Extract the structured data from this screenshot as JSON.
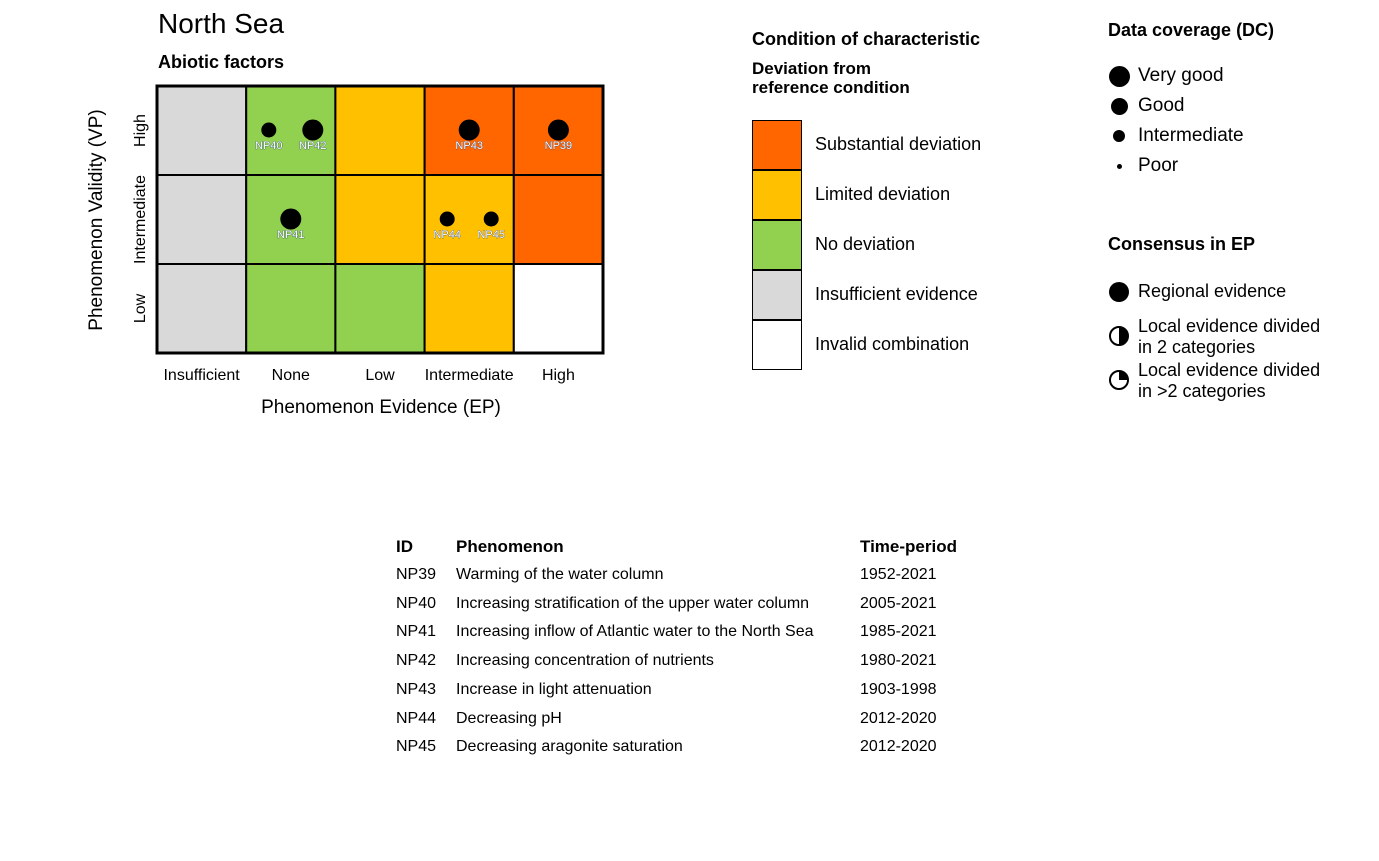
{
  "title": "North Sea",
  "subtitle": "Abiotic factors",
  "chart_data": {
    "type": "heatmap",
    "xlabel": "Phenomenon Evidence (EP)",
    "ylabel": "Phenomenon Validity (VP)",
    "x_categories": [
      "Insufficient",
      "None",
      "Low",
      "Intermediate",
      "High"
    ],
    "y_categories": [
      "High",
      "Intermediate",
      "Low"
    ],
    "cells": [
      [
        "insufficient",
        "none",
        "limited",
        "substantial",
        "substantial"
      ],
      [
        "insufficient",
        "none",
        "limited",
        "limited",
        "substantial"
      ],
      [
        "insufficient",
        "none",
        "none",
        "limited",
        "invalid"
      ]
    ],
    "points": [
      {
        "id": "NP40",
        "ep": "None",
        "vp": "High",
        "coverage": "Intermediate"
      },
      {
        "id": "NP42",
        "ep": "None",
        "vp": "High",
        "coverage": "Very good"
      },
      {
        "id": "NP43",
        "ep": "Intermediate",
        "vp": "High",
        "coverage": "Very good"
      },
      {
        "id": "NP39",
        "ep": "High",
        "vp": "High",
        "coverage": "Very good"
      },
      {
        "id": "NP41",
        "ep": "None",
        "vp": "Intermediate",
        "coverage": "Very good"
      },
      {
        "id": "NP44",
        "ep": "Intermediate",
        "vp": "Intermediate",
        "coverage": "Intermediate"
      },
      {
        "id": "NP45",
        "ep": "Intermediate",
        "vp": "Intermediate",
        "coverage": "Intermediate"
      }
    ]
  },
  "colors": {
    "substantial": "#FF6600",
    "limited": "#FFC000",
    "none": "#92D050",
    "insufficient": "#D9D9D9",
    "invalid": "#FFFFFF"
  },
  "legend": {
    "title": "Condition of characteristic",
    "subtitle_1": "Deviation from",
    "subtitle_2": "reference condition",
    "items": [
      {
        "key": "substantial",
        "label": "Substantial deviation"
      },
      {
        "key": "limited",
        "label": "Limited deviation"
      },
      {
        "key": "none",
        "label": "No deviation"
      },
      {
        "key": "insufficient",
        "label": "Insufficient evidence"
      },
      {
        "key": "invalid",
        "label": "Invalid combination"
      }
    ]
  },
  "coverage": {
    "title": "Data coverage (DC)",
    "items": [
      "Very good",
      "Good",
      "Intermediate",
      "Poor"
    ]
  },
  "consensus": {
    "title": "Consensus in EP",
    "items": [
      {
        "l1": "Regional evidence",
        "l2": ""
      },
      {
        "l1": "Local evidence divided",
        "l2": "in 2 categories"
      },
      {
        "l1": "Local evidence divided",
        "l2": "in >2 categories"
      }
    ]
  },
  "table": {
    "headers": [
      "ID",
      "Phenomenon",
      "Time-period"
    ],
    "rows": [
      [
        "NP39",
        "Warming of the water column",
        "1952-2021"
      ],
      [
        "NP40",
        "Increasing stratification of the upper water column",
        "2005-2021"
      ],
      [
        "NP41",
        "Increasing inflow of Atlantic water to the North Sea",
        "1985-2021"
      ],
      [
        "NP42",
        "Increasing concentration of nutrients",
        "1980-2021"
      ],
      [
        "NP43",
        "Increase in light attenuation",
        "1903-1998"
      ],
      [
        "NP44",
        "Decreasing pH",
        "2012-2020"
      ],
      [
        "NP45",
        "Decreasing aragonite saturation",
        "2012-2020"
      ]
    ]
  }
}
